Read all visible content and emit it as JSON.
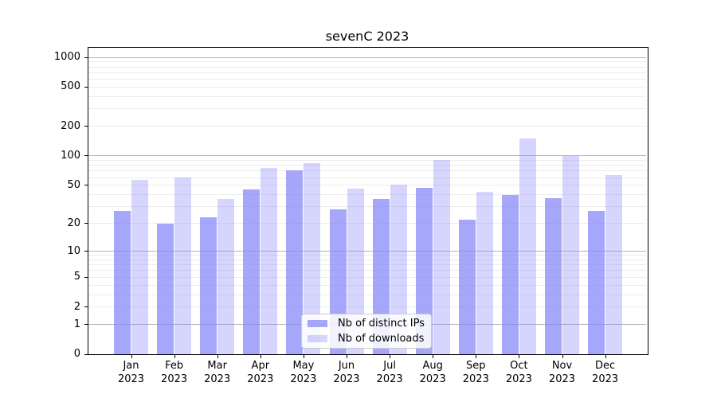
{
  "chart_data": {
    "type": "bar",
    "title": "sevenC 2023",
    "categories": [
      "Jan 2023",
      "Feb 2023",
      "Mar 2023",
      "Apr 2023",
      "May 2023",
      "Jun 2023",
      "Jul 2023",
      "Aug 2023",
      "Sep 2023",
      "Oct 2023",
      "Nov 2023",
      "Dec 2023"
    ],
    "series": [
      {
        "name": "Nb of distinct IPs",
        "color": "rgba(136,136,248,0.75)",
        "values": [
          27,
          20,
          23,
          45,
          71,
          28,
          36,
          47,
          22,
          40,
          37,
          27
        ]
      },
      {
        "name": "Nb of downloads",
        "color": "rgba(136,136,248,0.35)",
        "values": [
          57,
          60,
          36,
          76,
          85,
          46,
          51,
          90,
          43,
          150,
          100,
          64
        ]
      }
    ],
    "yscale": "log1p",
    "yticks": [
      0,
      1,
      2,
      5,
      10,
      20,
      50,
      100,
      200,
      500,
      1000
    ],
    "ylim": [
      0,
      1250
    ],
    "legend_position": "lower center",
    "grid": true,
    "colors": {
      "major_gridline": "#b2b2b2",
      "minor_gridline": "#ececec",
      "spine": "#000000",
      "background": "#ffffff"
    }
  }
}
